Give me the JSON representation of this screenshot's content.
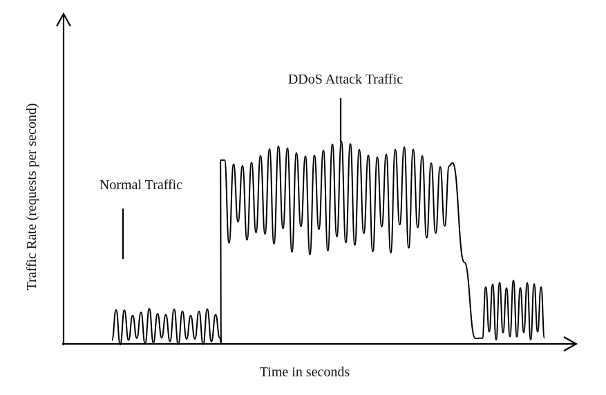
{
  "axes": {
    "y_label": "Traffic Rate (requests per  second)",
    "x_label": "Time in seconds"
  },
  "annotations": {
    "normal": "Normal Traffic",
    "attack": "DDoS Attack Traffic"
  }
}
